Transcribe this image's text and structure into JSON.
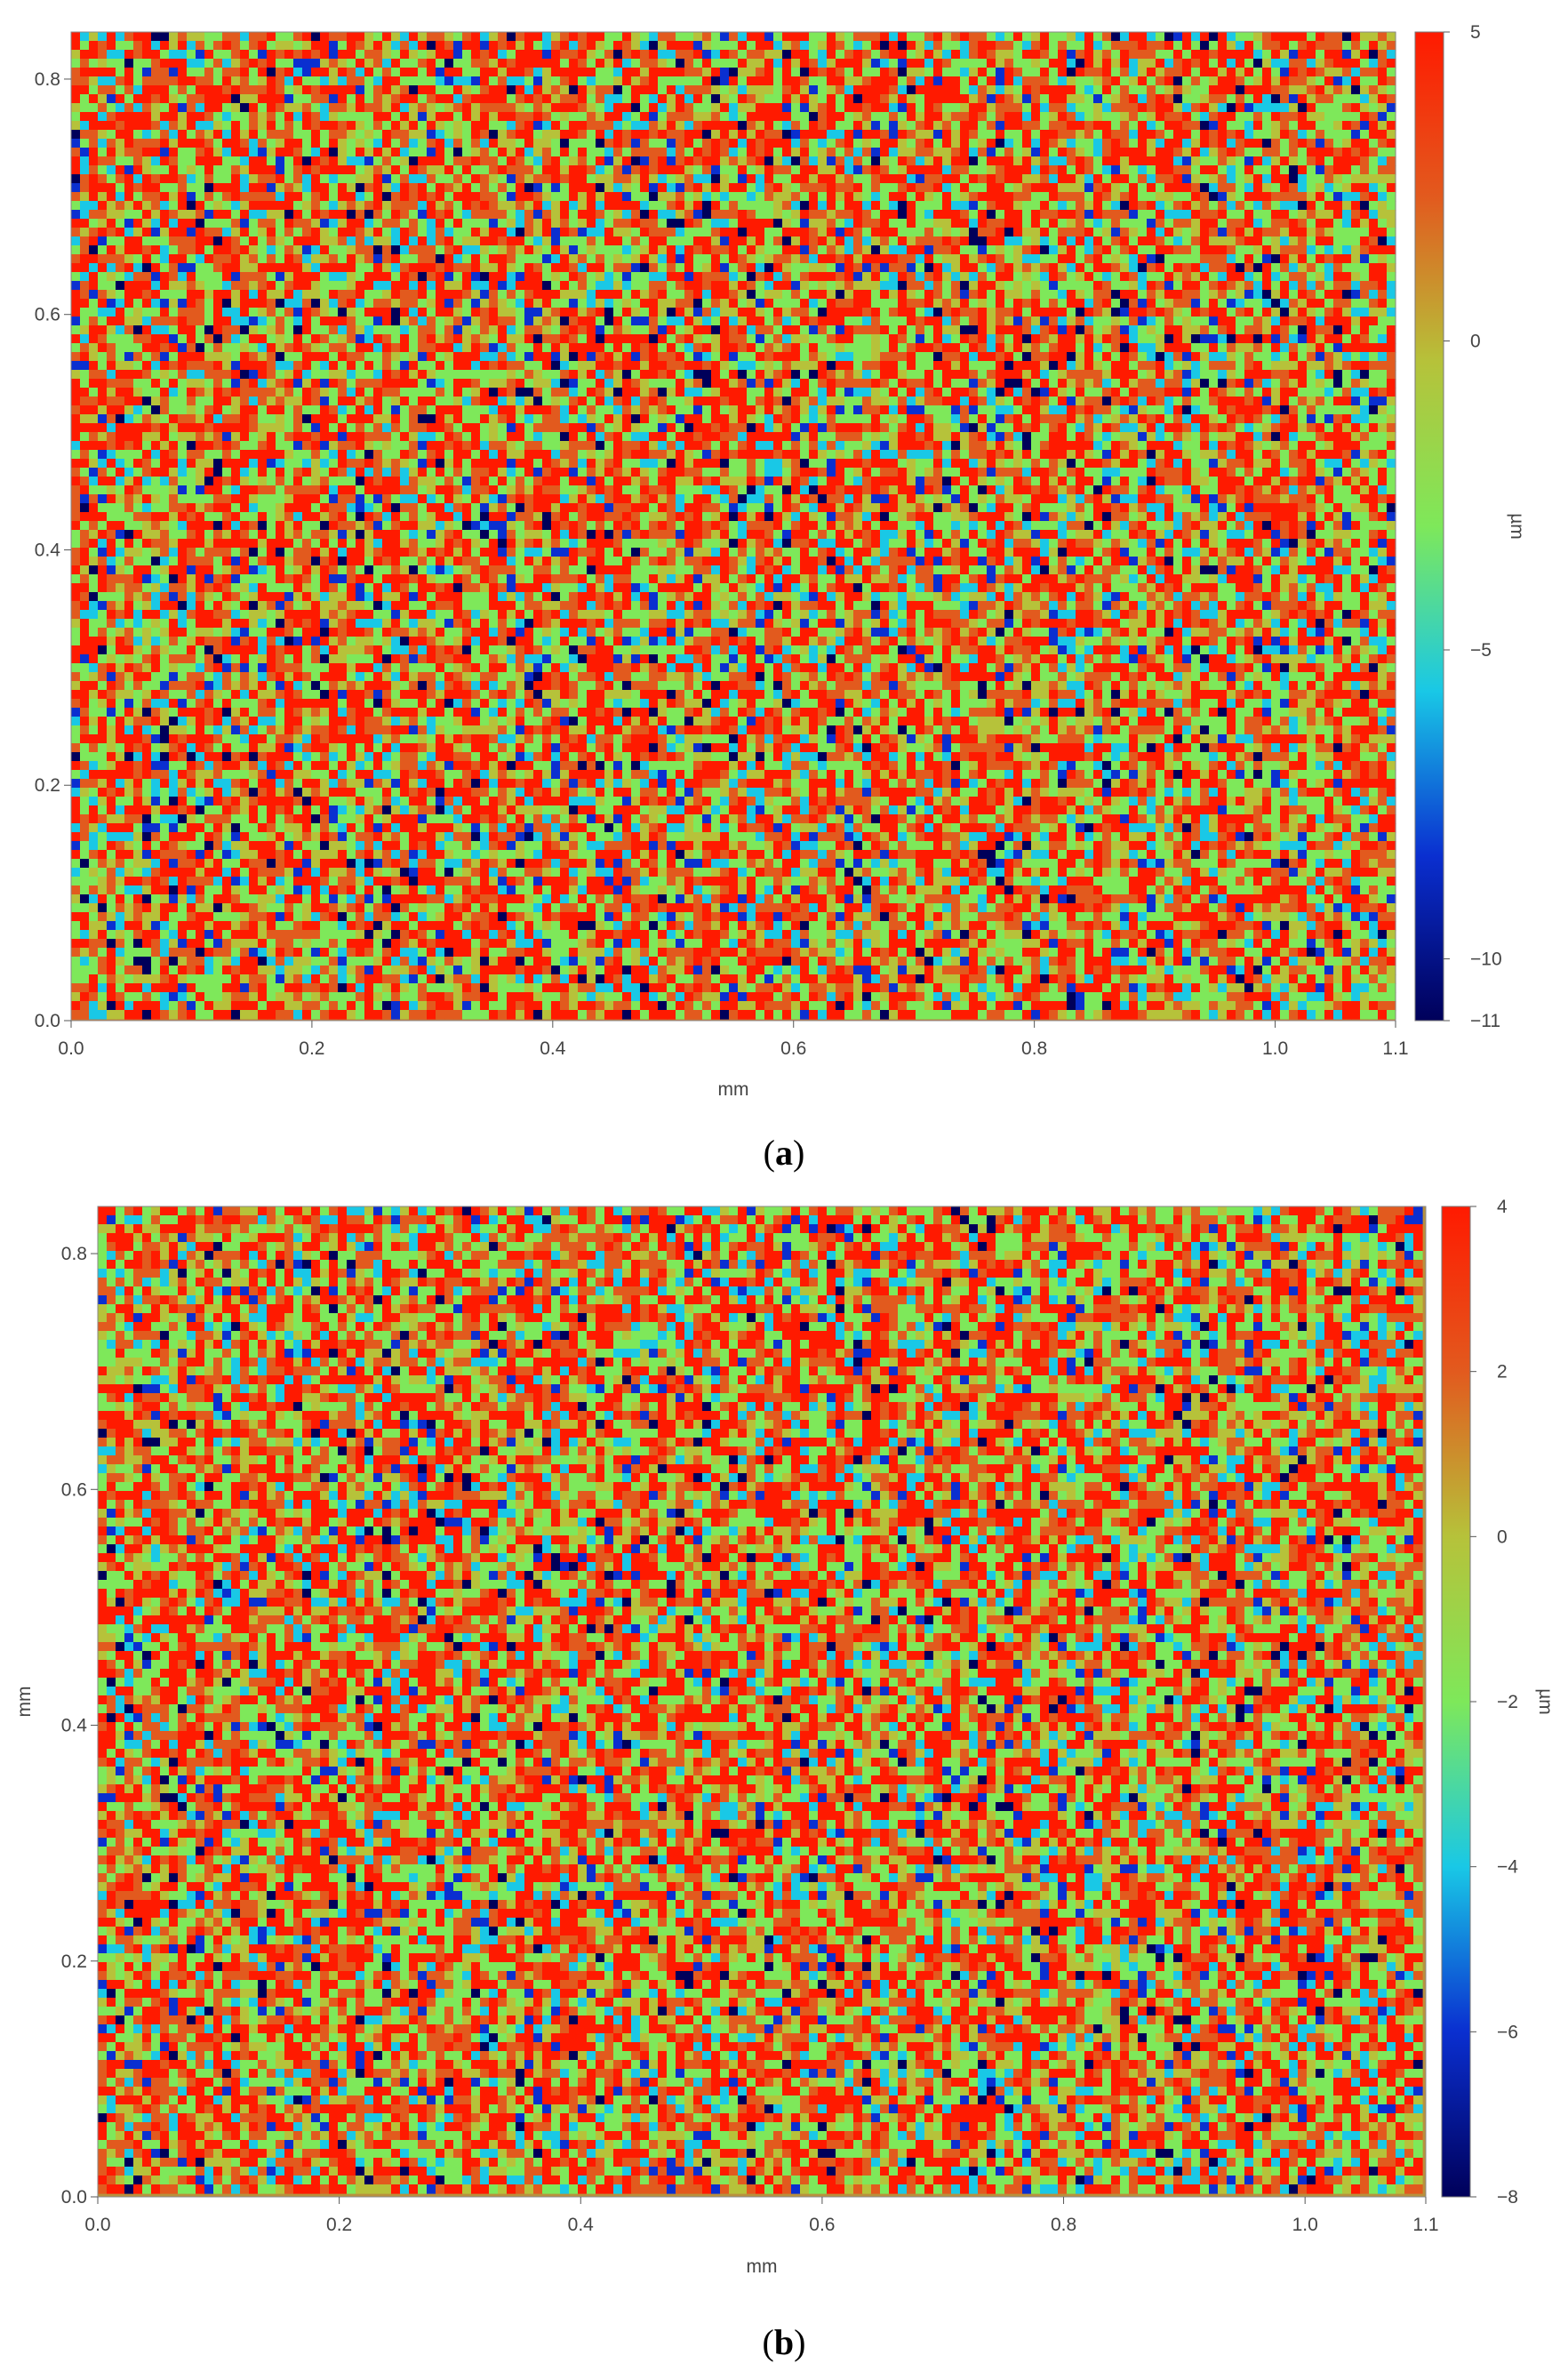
{
  "chart_data": [
    {
      "type": "heatmap",
      "panel_label": "a",
      "xlabel": "mm",
      "ylabel": "",
      "colorbar_label": "µm",
      "xlim": [
        0.0,
        1.1
      ],
      "ylim": [
        0.0,
        0.84
      ],
      "x_ticks": [
        "0.0",
        "0.2",
        "0.4",
        "0.6",
        "0.8",
        "1.0",
        "1.1"
      ],
      "y_ticks": [
        "0.0",
        "0.2",
        "0.4",
        "0.6",
        "0.8"
      ],
      "colorbar_range": [
        -11,
        5
      ],
      "colorbar_ticks": [
        "5",
        "0",
        "−5",
        "−10",
        "−11"
      ],
      "colormap": [
        "#00005a",
        "#0a2fd0",
        "#19c8e6",
        "#7ee85a",
        "#b6c23a",
        "#e25a1e",
        "#ff1a00"
      ]
    },
    {
      "type": "heatmap",
      "panel_label": "b",
      "xlabel": "mm",
      "ylabel": "mm",
      "colorbar_label": "µm",
      "xlim": [
        0.0,
        1.1
      ],
      "ylim": [
        0.0,
        0.84
      ],
      "x_ticks": [
        "0.0",
        "0.2",
        "0.4",
        "0.6",
        "0.8",
        "1.0",
        "1.1"
      ],
      "y_ticks": [
        "0.0",
        "0.2",
        "0.4",
        "0.6",
        "0.8"
      ],
      "colorbar_range": [
        -8,
        4
      ],
      "colorbar_ticks": [
        "4",
        "2",
        "0",
        "−2",
        "−4",
        "−6",
        "−8"
      ],
      "colormap": [
        "#00005a",
        "#0a2fd0",
        "#19c8e6",
        "#7ee85a",
        "#b6c23a",
        "#e25a1e",
        "#ff1a00"
      ]
    }
  ]
}
